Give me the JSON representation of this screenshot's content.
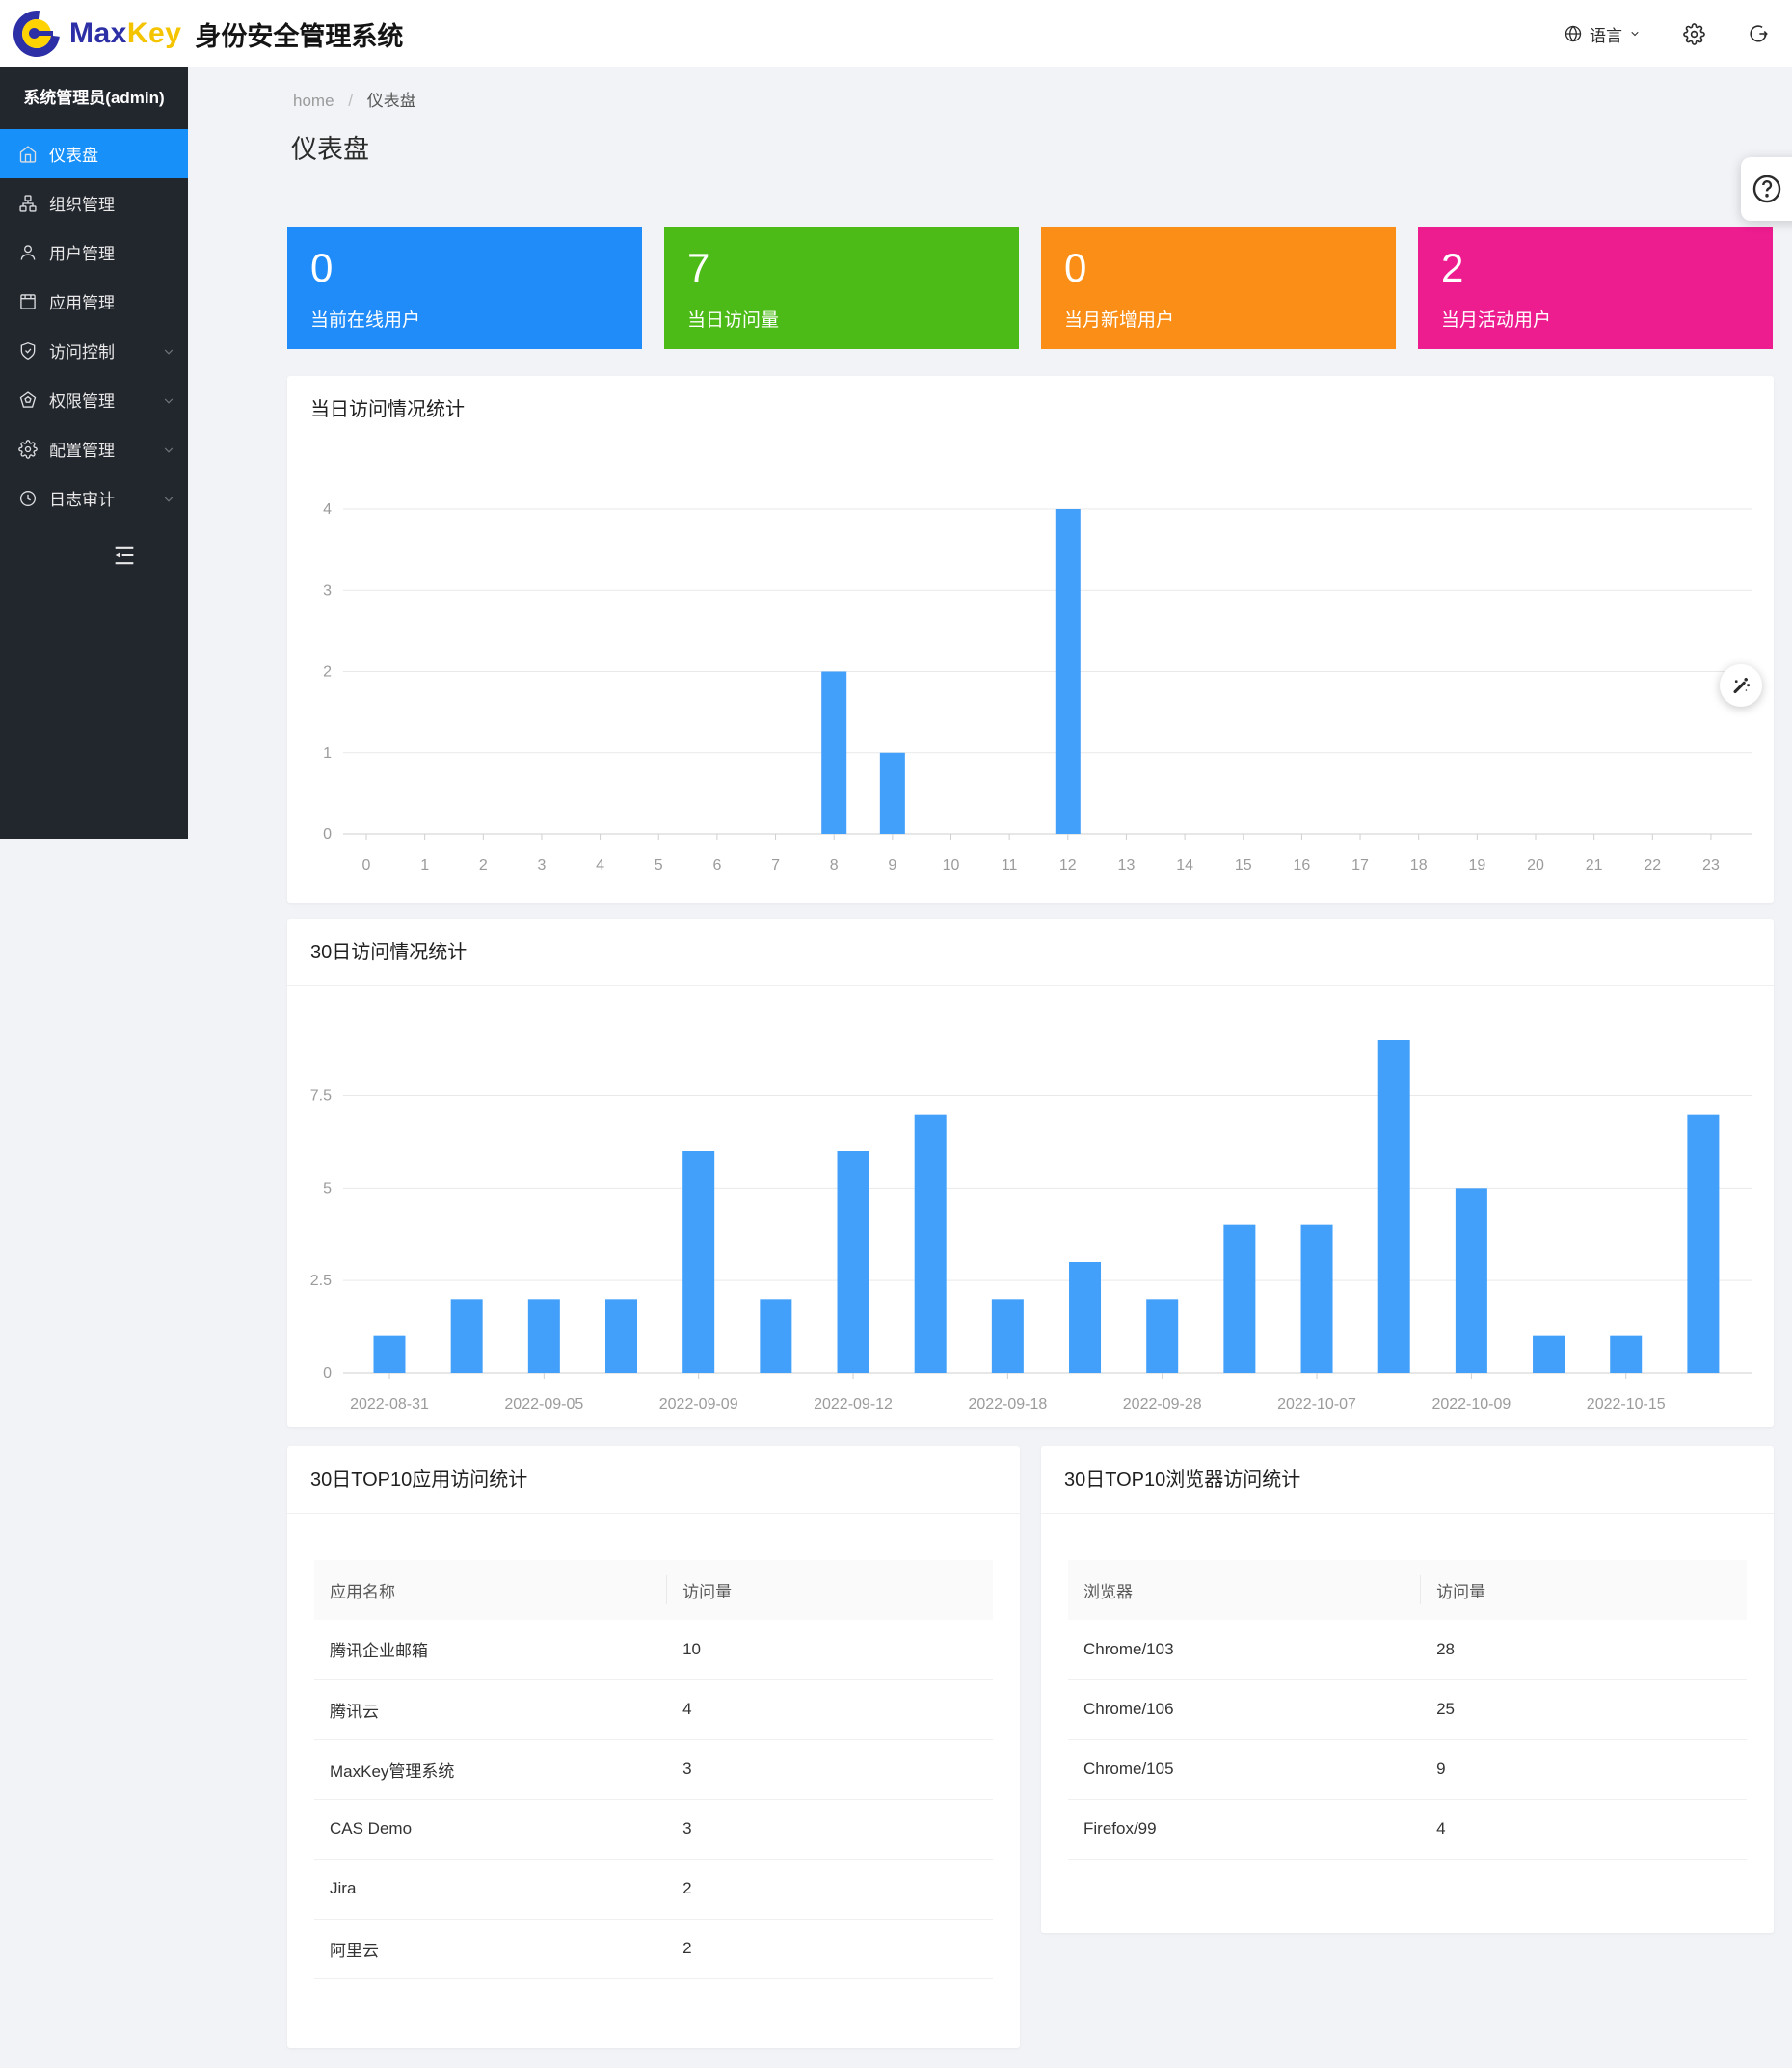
{
  "header": {
    "brand_max": "Max",
    "brand_key": "Key",
    "title": "身份安全管理系统",
    "language_label": "语言"
  },
  "sidebar": {
    "admin_title": "系统管理员(admin)",
    "items": [
      {
        "label": "仪表盘",
        "icon": "home-icon",
        "active": true,
        "has_children": false
      },
      {
        "label": "组织管理",
        "icon": "org-icon",
        "active": false,
        "has_children": false
      },
      {
        "label": "用户管理",
        "icon": "user-icon",
        "active": false,
        "has_children": false
      },
      {
        "label": "应用管理",
        "icon": "app-icon",
        "active": false,
        "has_children": false
      },
      {
        "label": "访问控制",
        "icon": "shield-check-icon",
        "active": false,
        "has_children": true
      },
      {
        "label": "权限管理",
        "icon": "pentagon-icon",
        "active": false,
        "has_children": true
      },
      {
        "label": "配置管理",
        "icon": "gear-icon",
        "active": false,
        "has_children": true
      },
      {
        "label": "日志审计",
        "icon": "clock-icon",
        "active": false,
        "has_children": true
      }
    ]
  },
  "breadcrumb": {
    "home": "home",
    "separator": "/",
    "current": "仪表盘"
  },
  "page_title": "仪表盘",
  "stat_cards": [
    {
      "value": "0",
      "label": "当前在线用户",
      "color": "#1f8cf9"
    },
    {
      "value": "7",
      "label": "当日访问量",
      "color": "#4cbb17"
    },
    {
      "value": "0",
      "label": "当月新增用户",
      "color": "#fa8e16"
    },
    {
      "value": "2",
      "label": "当月活动用户",
      "color": "#ed1c8f"
    }
  ],
  "chart_data": [
    {
      "type": "bar",
      "title": "当日访问情况统计",
      "categories": [
        "0",
        "1",
        "2",
        "3",
        "4",
        "5",
        "6",
        "7",
        "8",
        "9",
        "10",
        "11",
        "12",
        "13",
        "14",
        "15",
        "16",
        "17",
        "18",
        "19",
        "20",
        "21",
        "22",
        "23"
      ],
      "values": [
        0,
        0,
        0,
        0,
        0,
        0,
        0,
        0,
        2,
        1,
        0,
        0,
        4,
        0,
        0,
        0,
        0,
        0,
        0,
        0,
        0,
        0,
        0,
        0
      ],
      "xlabel": "",
      "ylabel": "",
      "ylim": [
        0,
        4
      ],
      "yticks": [
        0,
        1,
        2,
        3,
        4
      ],
      "bar_color": "#42a0fa",
      "grid": true,
      "legend_position": "none"
    },
    {
      "type": "bar",
      "title": "30日访问情况统计",
      "categories": [
        "2022-08-31",
        "",
        "2022-09-05",
        "",
        "2022-09-09",
        "",
        "2022-09-12",
        "",
        "2022-09-18",
        "",
        "2022-09-28",
        "",
        "2022-10-07",
        "",
        "2022-10-09",
        "",
        "2022-10-15",
        ""
      ],
      "values": [
        1,
        2,
        2,
        2,
        6,
        2,
        6,
        7,
        2,
        3,
        2,
        4,
        4,
        9,
        5,
        1,
        1,
        7
      ],
      "xlabel": "",
      "ylabel": "",
      "ylim": [
        0,
        9
      ],
      "yticks": [
        0,
        2.5,
        5,
        7.5
      ],
      "bar_color": "#42a0fa",
      "grid": true,
      "legend_position": "none"
    }
  ],
  "tables": [
    {
      "title": "30日TOP10应用访问统计",
      "columns": [
        "应用名称",
        "访问量"
      ],
      "rows": [
        [
          "腾讯企业邮箱",
          "10"
        ],
        [
          "腾讯云",
          "4"
        ],
        [
          "MaxKey管理系统",
          "3"
        ],
        [
          "CAS Demo",
          "3"
        ],
        [
          "Jira",
          "2"
        ],
        [
          "阿里云",
          "2"
        ]
      ]
    },
    {
      "title": "30日TOP10浏览器访问统计",
      "columns": [
        "浏览器",
        "访问量"
      ],
      "rows": [
        [
          "Chrome/103",
          "28"
        ],
        [
          "Chrome/106",
          "25"
        ],
        [
          "Chrome/105",
          "9"
        ],
        [
          "Firefox/99",
          "4"
        ]
      ]
    }
  ],
  "colors": {
    "sidebar_bg": "#22262d",
    "active_menu": "#1890fa",
    "content_bg": "#f1f3f7",
    "bar_blue": "#42a0fa",
    "logo_navy": "#2c2fa5",
    "logo_yellow": "#ffd200"
  }
}
